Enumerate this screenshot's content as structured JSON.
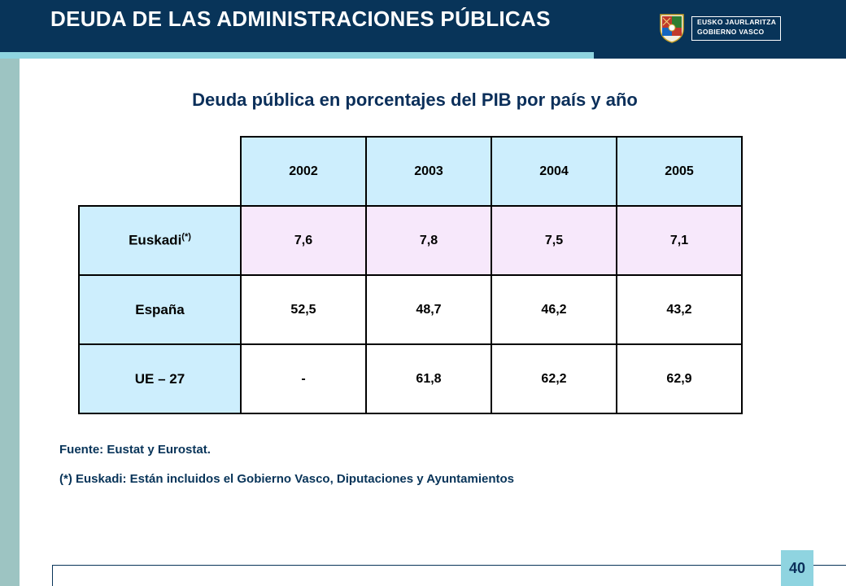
{
  "header": {
    "title": "DEUDA DE LAS ADMINISTRACIONES PÚBLICAS",
    "logo_line1": "EUSKO JAURLARITZA",
    "logo_line2": "GOBIERNO VASCO"
  },
  "subtitle": "Deuda pública en porcentajes del PIB por país y año",
  "table": {
    "years": [
      "2002",
      "2003",
      "2004",
      "2005"
    ],
    "rows": [
      {
        "label": "Euskadi",
        "label_sup": "(*)",
        "values": [
          "7,6",
          "7,8",
          "7,5",
          "7,1"
        ]
      },
      {
        "label": "España",
        "values": [
          "52,5",
          "48,7",
          "46,2",
          "43,2"
        ]
      },
      {
        "label": "UE – 27",
        "values": [
          "-",
          "61,8",
          "62,2",
          "62,9"
        ]
      }
    ]
  },
  "notes": {
    "source": "Fuente: Eustat y Eurostat.",
    "footnote": "(*) Euskadi: Están incluidos el Gobierno Vasco, Diputaciones y Ayuntamientos"
  },
  "page_number": "40",
  "colors": {
    "header": "#083459",
    "accent": "#8fd4e0",
    "left_bar": "#9dc4c2",
    "table_header": "#cdeefd",
    "euskadi_row": "#f7e8fb"
  }
}
